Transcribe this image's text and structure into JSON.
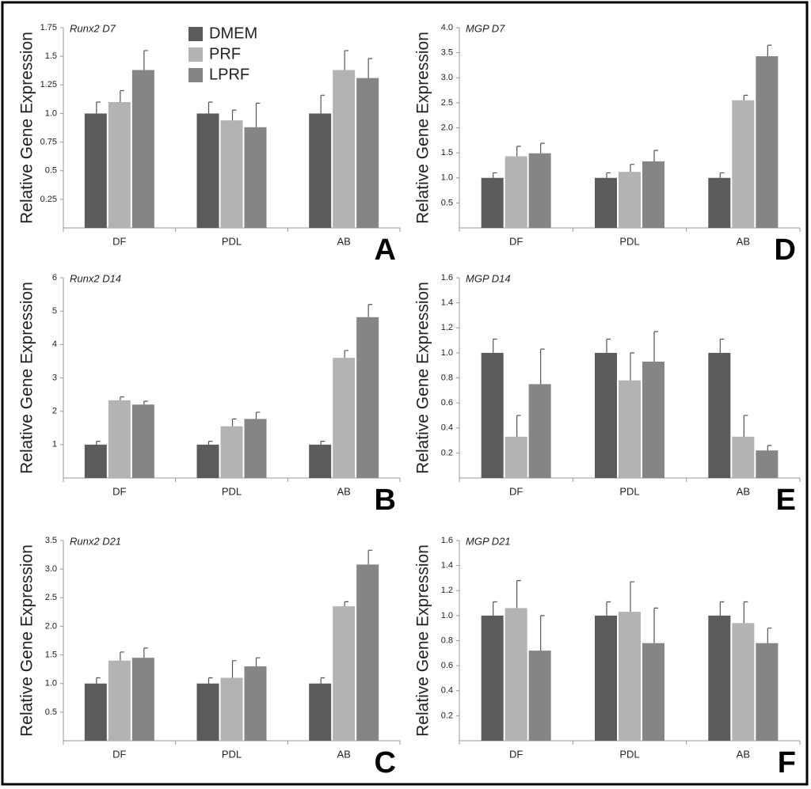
{
  "chart_data": [
    {
      "type": "bar",
      "title": "Runx2 D7",
      "y_label": "Relative Gene Expression",
      "panel_label": "A",
      "categories": [
        "DF",
        "PDL",
        "AB"
      ],
      "ylim": [
        0,
        1.75
      ],
      "yticks": [
        0.25,
        0.5,
        0.75,
        {
          "value": 1,
          "label": "1.0"
        },
        1.25,
        1.5,
        1.75
      ],
      "legend": "top-left",
      "series": [
        {
          "name": "DMEM",
          "color": "#5b5b5b",
          "values": [
            1.0,
            1.0,
            1.0
          ],
          "errors": [
            0.1,
            0.1,
            0.16
          ]
        },
        {
          "name": "PRF",
          "color": "#b3b3b3",
          "values": [
            1.1,
            0.94,
            1.38
          ],
          "errors": [
            0.1,
            0.09,
            0.17
          ]
        },
        {
          "name": "LPRF",
          "color": "#858585",
          "values": [
            1.38,
            0.88,
            1.31
          ],
          "errors": [
            0.17,
            0.21,
            0.17
          ]
        }
      ]
    },
    {
      "type": "bar",
      "title": "Runx2 D14",
      "y_label": "Relative Gene Expression",
      "panel_label": "B",
      "categories": [
        "DF",
        "PDL",
        "AB"
      ],
      "ylim": [
        0,
        6
      ],
      "yticks": [
        1,
        2,
        3,
        4,
        5,
        6
      ],
      "series": [
        {
          "name": "DMEM",
          "color": "#5b5b5b",
          "values": [
            1,
            1,
            1
          ],
          "errors": [
            0.1,
            0.1,
            0.1
          ]
        },
        {
          "name": "PRF",
          "color": "#b3b3b3",
          "values": [
            2.33,
            1.55,
            3.6
          ],
          "errors": [
            0.1,
            0.22,
            0.22
          ]
        },
        {
          "name": "LPRF",
          "color": "#858585",
          "values": [
            2.2,
            1.77,
            4.82
          ],
          "errors": [
            0.1,
            0.2,
            0.38
          ]
        }
      ]
    },
    {
      "type": "bar",
      "title": "Runx2 D21",
      "y_label": "Relative Gene Expression",
      "panel_label": "C",
      "categories": [
        "DF",
        "PDL",
        "AB"
      ],
      "ylim": [
        0,
        3.5
      ],
      "yticks": [
        0.5,
        {
          "value": 1,
          "label": "1.0"
        },
        1.5,
        {
          "value": 2,
          "label": "2.0"
        },
        2.5,
        {
          "value": 3,
          "label": "3.0"
        },
        3.5
      ],
      "series": [
        {
          "name": "DMEM",
          "color": "#5b5b5b",
          "values": [
            1.0,
            1.0,
            1.0
          ],
          "errors": [
            0.1,
            0.1,
            0.1
          ]
        },
        {
          "name": "PRF",
          "color": "#b3b3b3",
          "values": [
            1.4,
            1.1,
            2.35
          ],
          "errors": [
            0.15,
            0.3,
            0.08
          ]
        },
        {
          "name": "LPRF",
          "color": "#858585",
          "values": [
            1.45,
            1.3,
            3.08
          ],
          "errors": [
            0.17,
            0.15,
            0.25
          ]
        }
      ]
    },
    {
      "type": "bar",
      "title": "MGP D7",
      "y_label": "Relative Gene Expression",
      "panel_label": "D",
      "categories": [
        "DF",
        "PDL",
        "AB"
      ],
      "ylim": [
        0,
        4
      ],
      "yticks": [
        0.5,
        {
          "value": 1,
          "label": "1.0"
        },
        1.5,
        {
          "value": 2,
          "label": "2.0"
        },
        2.5,
        {
          "value": 3,
          "label": "3.0"
        },
        3.5,
        {
          "value": 4,
          "label": "4.0"
        }
      ],
      "series": [
        {
          "name": "DMEM",
          "color": "#5b5b5b",
          "values": [
            1.0,
            1.0,
            1.0
          ],
          "errors": [
            0.1,
            0.1,
            0.1
          ]
        },
        {
          "name": "PRF",
          "color": "#b3b3b3",
          "values": [
            1.43,
            1.12,
            2.55
          ],
          "errors": [
            0.2,
            0.15,
            0.1
          ]
        },
        {
          "name": "LPRF",
          "color": "#858585",
          "values": [
            1.49,
            1.33,
            3.43
          ],
          "errors": [
            0.2,
            0.22,
            0.22
          ]
        }
      ]
    },
    {
      "type": "bar",
      "title": "MGP D14",
      "y_label": "Relative Gene Expression",
      "panel_label": "E",
      "categories": [
        "DF",
        "PDL",
        "AB"
      ],
      "ylim": [
        0,
        1.6
      ],
      "yticks": [
        0.2,
        0.4,
        0.6,
        0.8,
        {
          "value": 1,
          "label": "1.0"
        },
        1.2,
        1.4,
        1.6
      ],
      "series": [
        {
          "name": "DMEM",
          "color": "#5b5b5b",
          "values": [
            1.0,
            1.0,
            1.0
          ],
          "errors": [
            0.11,
            0.11,
            0.11
          ]
        },
        {
          "name": "PRF",
          "color": "#b3b3b3",
          "values": [
            0.33,
            0.78,
            0.33
          ],
          "errors": [
            0.17,
            0.22,
            0.17
          ]
        },
        {
          "name": "LPRF",
          "color": "#858585",
          "values": [
            0.75,
            0.93,
            0.22
          ],
          "errors": [
            0.28,
            0.24,
            0.04
          ]
        }
      ]
    },
    {
      "type": "bar",
      "title": "MGP D21",
      "y_label": "Relative Gene Expression",
      "panel_label": "F",
      "categories": [
        "DF",
        "PDL",
        "AB"
      ],
      "ylim": [
        0,
        1.6
      ],
      "yticks": [
        0.2,
        0.4,
        0.6,
        0.8,
        {
          "value": 1,
          "label": "1.0"
        },
        1.2,
        1.4,
        1.6
      ],
      "series": [
        {
          "name": "DMEM",
          "color": "#5b5b5b",
          "values": [
            1.0,
            1.0,
            1.0
          ],
          "errors": [
            0.11,
            0.11,
            0.11
          ]
        },
        {
          "name": "PRF",
          "color": "#b3b3b3",
          "values": [
            1.06,
            1.03,
            0.94
          ],
          "errors": [
            0.22,
            0.24,
            0.17
          ]
        },
        {
          "name": "LPRF",
          "color": "#858585",
          "values": [
            0.72,
            0.78,
            0.78
          ],
          "errors": [
            0.28,
            0.28,
            0.12
          ]
        }
      ]
    }
  ]
}
